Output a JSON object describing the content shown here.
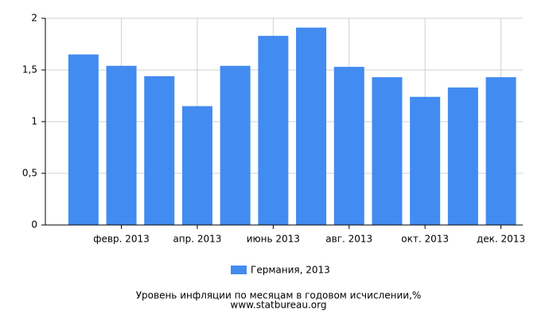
{
  "chart_data": {
    "type": "bar",
    "title": "Уровень инфляции по месяцам в годовом исчислении,%",
    "subtitle": "www.statbureau.org",
    "categories": [
      null,
      "февр. 2013",
      null,
      "апр. 2013",
      null,
      "июнь 2013",
      null,
      "авг. 2013",
      null,
      "окт. 2013",
      null,
      "дек. 2013"
    ],
    "series": [
      {
        "name": "Германия, 2013",
        "color": "#428bf0",
        "values": [
          1.65,
          1.54,
          1.44,
          1.15,
          1.54,
          1.83,
          1.91,
          1.53,
          1.43,
          1.24,
          1.33,
          1.43
        ]
      }
    ],
    "ylim": [
      0,
      2
    ],
    "yticks": [
      0,
      {
        "value": 0.5,
        "label": "0,5"
      },
      1,
      {
        "value": 1.5,
        "label": "1,5"
      },
      2
    ],
    "grid": true
  }
}
